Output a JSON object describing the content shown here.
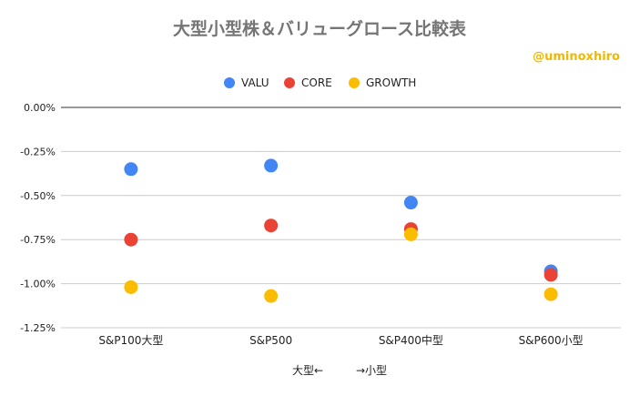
{
  "chart_data": {
    "type": "scatter",
    "title": "大型小型株＆バリューグロース比較表",
    "watermark": "@uminoxhiro",
    "xlabel": "大型←　　　→小型",
    "ylabel": "",
    "categories": [
      "S&P100大型",
      "S&P500",
      "S&P400中型",
      "S&P600小型"
    ],
    "ylim": [
      -1.25,
      0.0
    ],
    "yticks": [
      0.0,
      -0.25,
      -0.5,
      -0.75,
      -1.0,
      -1.25
    ],
    "ytick_labels": [
      "0.00%",
      "-0.25%",
      "-0.50%",
      "-0.75%",
      "-1.00%",
      "-1.25%"
    ],
    "grid": true,
    "legend_position": "top-center",
    "series": [
      {
        "name": "VALU",
        "color": "#4285f4",
        "values": [
          -0.35,
          -0.33,
          -0.54,
          -0.93
        ]
      },
      {
        "name": "CORE",
        "color": "#ea4335",
        "values": [
          -0.75,
          -0.67,
          -0.69,
          -0.95
        ]
      },
      {
        "name": "GROWTH",
        "color": "#fbbc04",
        "values": [
          -1.02,
          -1.07,
          -0.72,
          -1.06
        ]
      }
    ]
  }
}
